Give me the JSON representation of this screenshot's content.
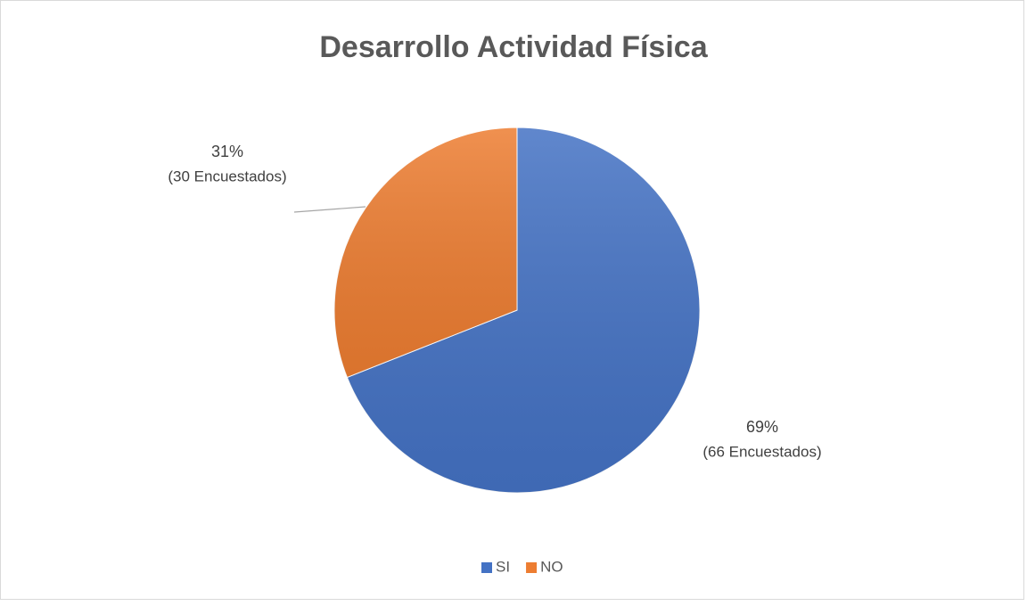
{
  "chart_data": {
    "type": "pie",
    "title": "Desarrollo Actividad Física",
    "categories": [
      "SI",
      "NO"
    ],
    "values": [
      69,
      31
    ],
    "value_labels": [
      "69%",
      "31%"
    ],
    "count_labels": [
      "(66 Encuestados)",
      "(30 Encuestados)"
    ],
    "colors": [
      "#4472c4",
      "#ed7d31"
    ],
    "legend": "bottom"
  }
}
